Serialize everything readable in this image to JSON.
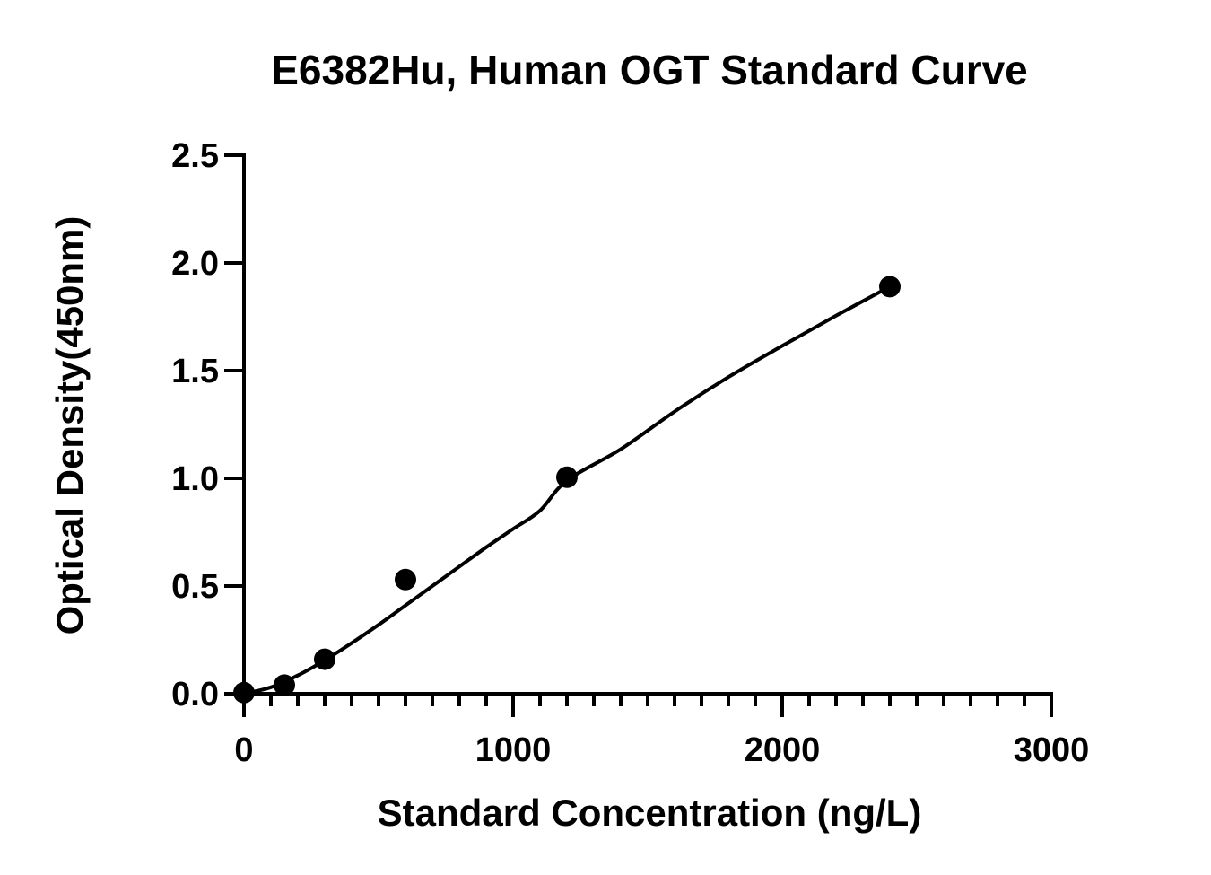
{
  "chart_data": {
    "type": "scatter",
    "title": "E6382Hu, Human OGT Standard Curve",
    "xlabel": "Standard Concentration (ng/L)",
    "ylabel": "Optical Density(450nm)",
    "xlim": [
      0,
      3000
    ],
    "ylim": [
      0,
      2.5
    ],
    "x_ticks": [
      "0",
      "1000",
      "2000",
      "3000"
    ],
    "y_ticks": [
      "0.0",
      "0.5",
      "1.0",
      "1.5",
      "2.0",
      "2.5"
    ],
    "x_minor_step": 100,
    "grid": false,
    "series": [
      {
        "points": [
          {
            "x": 0,
            "y": 0.005
          },
          {
            "x": 150,
            "y": 0.04
          },
          {
            "x": 300,
            "y": 0.16
          },
          {
            "x": 600,
            "y": 0.53
          },
          {
            "x": 1200,
            "y": 1.005
          },
          {
            "x": 2400,
            "y": 1.89
          }
        ],
        "fit_curve": [
          {
            "x": 0,
            "y": 0.0
          },
          {
            "x": 100,
            "y": 0.03
          },
          {
            "x": 200,
            "y": 0.085
          },
          {
            "x": 300,
            "y": 0.155
          },
          {
            "x": 400,
            "y": 0.235
          },
          {
            "x": 500,
            "y": 0.32
          },
          {
            "x": 600,
            "y": 0.41
          },
          {
            "x": 700,
            "y": 0.5
          },
          {
            "x": 800,
            "y": 0.59
          },
          {
            "x": 900,
            "y": 0.68
          },
          {
            "x": 1000,
            "y": 0.765
          },
          {
            "x": 1100,
            "y": 0.85
          },
          {
            "x": 1200,
            "y": 0.99
          },
          {
            "x": 1400,
            "y": 1.135
          },
          {
            "x": 1600,
            "y": 1.31
          },
          {
            "x": 1800,
            "y": 1.47
          },
          {
            "x": 2000,
            "y": 1.615
          },
          {
            "x": 2200,
            "y": 1.755
          },
          {
            "x": 2400,
            "y": 1.89
          }
        ]
      }
    ]
  }
}
